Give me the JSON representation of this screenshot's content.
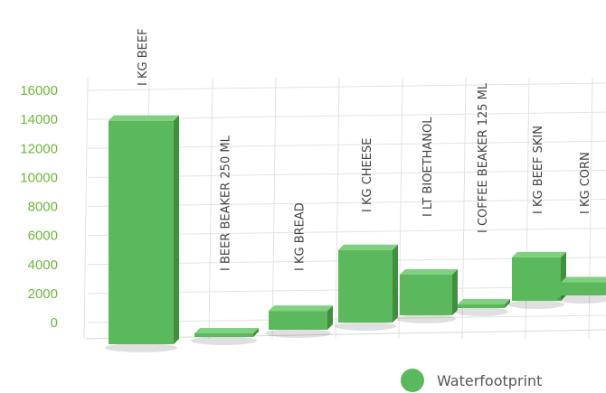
{
  "chart_data": {
    "type": "bar",
    "categories": [
      "I KG BEEF",
      "I BEER BEAKER 250 ML",
      "I KG BREAD",
      "I KG CHEESE",
      "I LT BIOETHANOL",
      "I COFFEE BEAKER 125 ML",
      "I KG BEEF SKIN",
      "I KG CORN"
    ],
    "series": [
      {
        "name": "Waterfootprint",
        "values": [
          15400,
          75,
          1300,
          5000,
          2800,
          140,
          3000,
          900
        ]
      }
    ],
    "yticks": [
      "0",
      "2000",
      "4000",
      "6000",
      "8000",
      "10000",
      "12000",
      "14000",
      "16000"
    ],
    "ylim": [
      0,
      16000
    ],
    "grid": true,
    "legend_position": "bottom-right",
    "colors": {
      "bar": "#5cb85c",
      "bar_top": "#7fd07f",
      "bar_side": "#3f8f3f",
      "tick": "#6db83a",
      "grid": "#e3e3e3"
    }
  }
}
